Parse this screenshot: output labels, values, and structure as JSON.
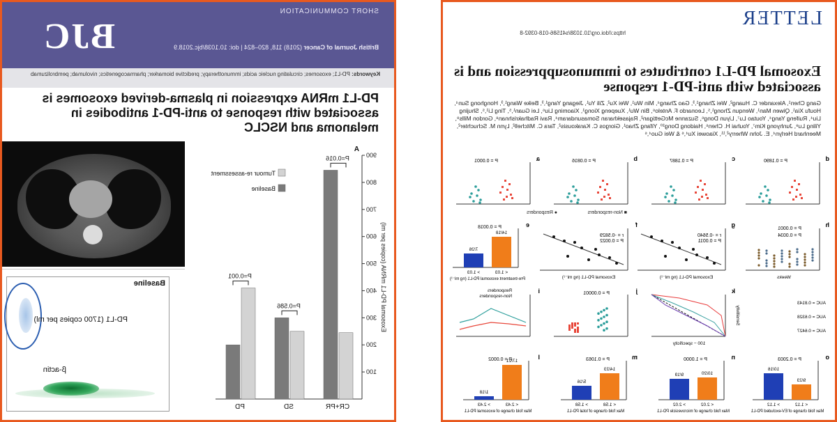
{
  "left_page": {
    "kicker": "SHORT COMMUNICATION",
    "journal_logo": "BJC",
    "citation_journal": "British Journal of Cancer",
    "citation_rest": "(2018) 118, 820–824 | doi: 10.1038/bjc.2018.9",
    "keywords_label": "Keywords:",
    "keywords": "PD-L1; exosomes; circulating nucleic acids; immunotherapy; predictive biomarker; pharmacogenetics; nivolumab; pembrolizumab",
    "title": "PD-L1 mRNA expression in plasma-derived exosomes is associated with response to anti-PD-1 antibodies in melanoma and NSCLC",
    "ddpcr": {
      "label_baseline": "Baseline",
      "label_pdl1": "PD-L1 (1700 copies per ml)",
      "label_bactin": "β-actin"
    },
    "chart_data": {
      "type": "bar",
      "panel_label": "A",
      "categories": [
        "CR+PR",
        "SD",
        "PD"
      ],
      "series": [
        {
          "name": "Tumour re-assessment",
          "values": [
            245,
            250,
            410
          ],
          "color": "#d3d3d3"
        },
        {
          "name": "Baseline",
          "values": [
            845,
            300,
            200
          ],
          "color": "#7a7a7a"
        }
      ],
      "p_values": [
        "P=0.016",
        "P=0.586",
        "P=0.001"
      ],
      "ylabel": "Exosomal PD-L1 mRNA (copies per ml)",
      "yticks": [
        100,
        200,
        300,
        400,
        500,
        600,
        700,
        800,
        900
      ],
      "ylim": [
        0,
        900
      ]
    }
  },
  "right_page": {
    "header": "LETTER",
    "doi": "https://doi.org/10.1038/s41586-018-0392-8",
    "title": "Exosomal PD-L1 contributes to immunosuppression and is associated with anti-PD-1 response",
    "authors": "Gang Chen¹, Alexander C. Huang², Wei Zhang¹,³, Gao Zhang⁴, Min Wu¹, Wei Xu², Zili Yu¹, Jiegang Yang¹,³, Beike Wang¹,³, Honghong Sun⁴, Houfu Xia¹, Qiwen Man¹, Wenqun Zhong¹,⁵, Leonardo F. Antelo⁶, Bin Wu¹, Xuepeng Xiong¹, Xiaoming Liu⁶, Lei Guan¹,⁵, Ting Li¹,⁵, Shujing Liu⁴, Ruifeng Yang⁴, Youtao Lu⁷, Liyun Dong⁶, Suzanne McGettigan², Rajasekharan Somasundaram⁴, Ravi Radhakrishnan⁸, Gordon Mills⁹, Yiling Lu⁹, Junhyong Kim⁷, Youhai H. Chen⁶, Haidong Dong¹⁰, Yifang Zhao¹, Giorgos C. Karakousis², Tara C. Mitchell², Lynn M. Schuchter², Meenhard Herlyn⁴, E. John Wherry²,¹¹, Xiaowei Xu⁴,⁶ & Wei Guo⁴,⁶",
    "panels": {
      "a_p": "P = 0.0001",
      "b_p": "P = 0.0816",
      "c_p": "P = 0.1887",
      "d_p": "P = 0.1890",
      "legend_nonresp": "Non-responders",
      "legend_resp": "Responders",
      "e_p": "P = 0.0018",
      "e_x1": "< 1.03",
      "e_x2": "> 1.03",
      "e_frac1": "14/18",
      "e_frac2": "7/26",
      "e_xlabel": "Pre-treatment exosomal PD-L1 (ng ml⁻¹)",
      "e_ylabel": "ORR (%)",
      "f_r": "r = -0.5829",
      "f_p": "P = 0.0022",
      "f_xlabel": "Exosomal PD-L1 (ng ml⁻¹)",
      "g_r": "r = -0.5640",
      "g_p": "P = 0.0011",
      "h_p1": "P = 0.0001",
      "h_p2": "P = 0.0034",
      "h_xlabel": "Weeks",
      "i_legend1": "Responders",
      "i_legend2": "Non-responders",
      "j_p": "P = 0.00001",
      "k_xlabel": "100 − specificity",
      "k_ylabel": "Sensitivity",
      "k_auc1": "AUC = 0.8143",
      "k_auc2": "AUC = 0.6328",
      "k_auc3": "AUC = 0.6427",
      "l_p": "P = 0.0002",
      "l_x1": "< 2.43",
      "l_x2": "> 2.43",
      "l_frac1": "17/21",
      "l_frac2": "1/18",
      "m_p": "P = 0.1063",
      "m_x1": "< 1.58",
      "m_x2": "> 1.58",
      "m_frac1": "14/23",
      "m_frac2": "5/16",
      "n_p": "P = 1.0000",
      "n_x1": "< 2.02",
      "n_x2": "> 2.02",
      "n_frac1": "10/20",
      "n_frac2": "9/19",
      "o_p": "P = 0.2003",
      "o_x1": "< 1.12",
      "o_x2": "> 1.12",
      "o_frac1": "9/23",
      "o_frac2": "10/16",
      "fold_label_l": "Max fold change of exosomal PD-L1",
      "fold_label_m": "Max fold change of total PD-L1",
      "fold_label_n": "Max fold change of microvesicle PD-L1",
      "fold_label_o": "Max fold change of EV-excluded PD-L1"
    }
  }
}
